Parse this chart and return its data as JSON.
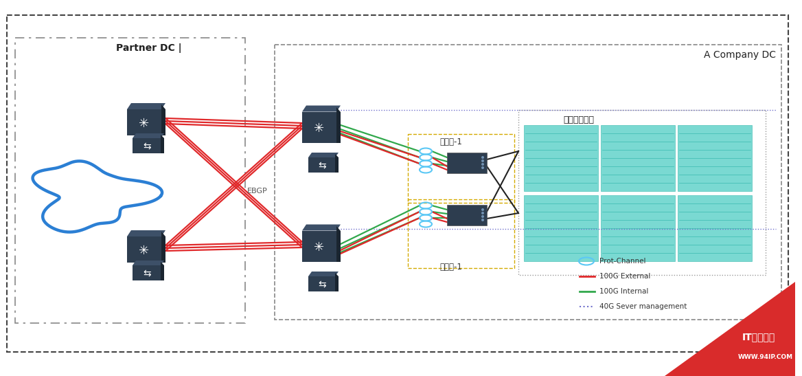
{
  "bg_color": "#ffffff",
  "partner_dc_label": "Partner DC |",
  "company_dc_label": "A Company DC",
  "controller1_label": "控制器-1",
  "controller2_label": "控制器-1",
  "firewall_pool_label": "防火墙资源池",
  "ebgp_label": "EBGP",
  "legend_items": [
    {
      "label": "Prot-Channel",
      "color": "#5bc8f5",
      "style": "ellipse"
    },
    {
      "label": "100G External",
      "color": "#e0282a",
      "style": "line"
    },
    {
      "label": "100G Internal",
      "color": "#31a84c",
      "style": "line"
    },
    {
      "label": "40G Sever management",
      "color": "#7070cc",
      "style": "dotted"
    }
  ],
  "watermark_text": "WWW.94IP.COM",
  "watermark_text2": "IT运维空间",
  "cloud_color": "#2b7fd4",
  "switch_color": "#2d3d4f",
  "router_color": "#2d3d4f"
}
